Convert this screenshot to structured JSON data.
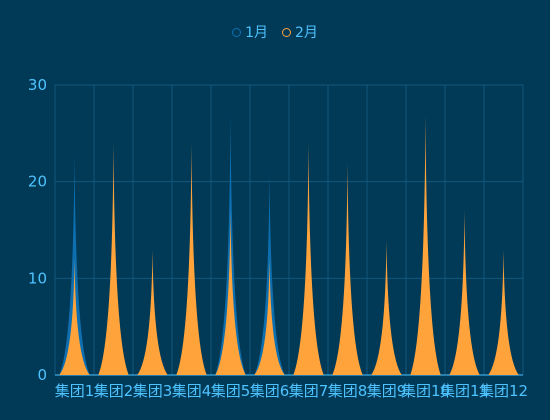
{
  "chart_data": {
    "type": "area",
    "categories": [
      "集团1",
      "集团2",
      "集团3",
      "集团4",
      "集团5",
      "集团6",
      "集团7",
      "集团8",
      "集团9",
      "集团10",
      "集团11",
      "集团12"
    ],
    "series": [
      {
        "name": "1月",
        "values": [
          23,
          18,
          9,
          19,
          27,
          21,
          18,
          16,
          12,
          11,
          13,
          8
        ],
        "color": "#0e6fb0",
        "marker": "circle"
      },
      {
        "name": "2月",
        "values": [
          12,
          24,
          13,
          24,
          17,
          12,
          24,
          22,
          14,
          27,
          17,
          13
        ],
        "color": "#ffa33a",
        "marker": "circle"
      }
    ],
    "ylim": [
      0,
      30
    ],
    "yticks": [
      0,
      10,
      20,
      30
    ],
    "legend_position": "top-center",
    "grid": true,
    "axis_label_color": "#4ec3ff",
    "grid_color": "#15577c",
    "xlabel": "",
    "ylabel": ""
  }
}
